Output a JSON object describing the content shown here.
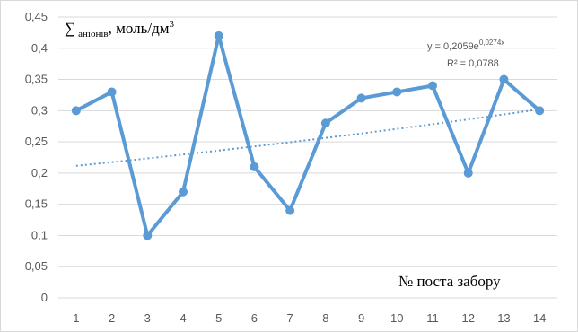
{
  "chart_data": {
    "type": "line",
    "x": [
      1,
      2,
      3,
      4,
      5,
      6,
      7,
      8,
      9,
      10,
      11,
      12,
      13,
      14
    ],
    "series": [
      {
        "values": [
          0.3,
          0.33,
          0.1,
          0.17,
          0.42,
          0.21,
          0.14,
          0.28,
          0.32,
          0.33,
          0.34,
          0.2,
          0.35,
          0.3
        ]
      }
    ],
    "trendline": {
      "type": "exponential",
      "a": 0.2059,
      "b": 0.0274,
      "equation_base": "y = 0,2059e",
      "equation_exp": "0,0274x",
      "r2_label": "R² = 0,0788"
    },
    "ylabel_symbol": "∑",
    "ylabel_sub": "аніонів",
    "ylabel_unit": ", моль/дм",
    "ylabel_sup": "3",
    "xlabel": "№ поста забору",
    "ylim": [
      0,
      0.45
    ],
    "ytick_step": 0.05,
    "yticks": [
      "0",
      "0,05",
      "0,1",
      "0,15",
      "0,2",
      "0,25",
      "0,3",
      "0,35",
      "0,4",
      "0,45"
    ],
    "xticks": [
      "1",
      "2",
      "3",
      "4",
      "5",
      "6",
      "7",
      "8",
      "9",
      "10",
      "11",
      "12",
      "13",
      "14"
    ],
    "grid": true,
    "colors": {
      "series": "#5b9bd5",
      "trend": "#5b9bd5",
      "grid": "#d9d9d9"
    }
  }
}
